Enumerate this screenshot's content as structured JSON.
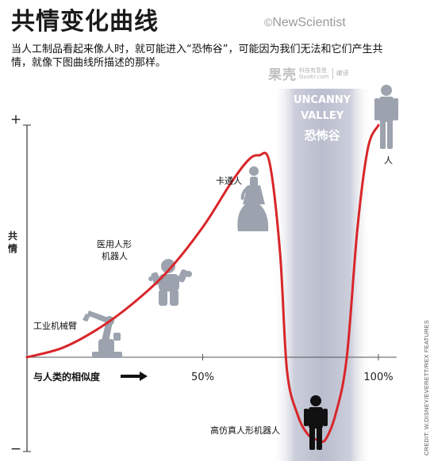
{
  "header": {
    "title": "共情变化曲线",
    "logo": "NewScientist",
    "logo_symbol": "©",
    "description": "当人工制品看起来像人时，就可能进入“恐怖谷”，可能因为我们无法和它们产生共情，就像下图曲线所描述的那样。",
    "watermark_main": "果壳",
    "watermark_sub_cn": "科技有意思",
    "watermark_sub_en": "Guokr.com",
    "watermark_right": "编译"
  },
  "credit": "CREDIT: W.DISNEY/EVERETT/REX FEATURES",
  "chart_data": {
    "type": "line",
    "title": "共情变化曲线",
    "ylabel": "共情",
    "xlabel": "与人类的相似度",
    "y_top_label": "+",
    "y_bottom_label": "−",
    "xlim": [
      0,
      100
    ],
    "ylim": [
      -1,
      1
    ],
    "x_ticks": [
      {
        "value": 50,
        "label": "50%"
      },
      {
        "value": 100,
        "label": "100%"
      }
    ],
    "region": {
      "label_en_line1": "UNCANNY",
      "label_en_line2": "VALLEY",
      "label_cn": "恐怖谷",
      "x_start": 74,
      "x_end": 94
    },
    "series": [
      {
        "color": "#d8262a",
        "x": [
          0,
          10,
          20,
          30,
          40,
          50,
          58,
          63,
          66,
          69,
          72,
          74,
          77,
          80,
          83,
          85,
          88,
          91,
          94,
          97,
          100
        ],
        "y": [
          0.0,
          0.04,
          0.12,
          0.23,
          0.37,
          0.56,
          0.75,
          0.85,
          0.87,
          0.84,
          0.45,
          -0.15,
          -0.63,
          -0.85,
          -0.91,
          -0.9,
          -0.6,
          0.0,
          0.55,
          0.9,
          1.0
        ]
      }
    ],
    "annotations": [
      {
        "label": "工业机械臂",
        "x": 17,
        "y": 0.04
      },
      {
        "label_line1": "医用人形",
        "label_line2": "机器人",
        "x": 37,
        "y": 0.37
      },
      {
        "label": "卡通人",
        "x": 66,
        "y": 0.87
      },
      {
        "label": "高仿真人形机器人",
        "x": 83,
        "y": -0.91
      },
      {
        "label": "人",
        "x": 100,
        "y": 1.0
      }
    ]
  },
  "colors": {
    "curve": "#d8262a",
    "valley_band": "#c5c8d6",
    "figure": "#9ca3ae",
    "android": "#111111",
    "axis": "#333333"
  }
}
